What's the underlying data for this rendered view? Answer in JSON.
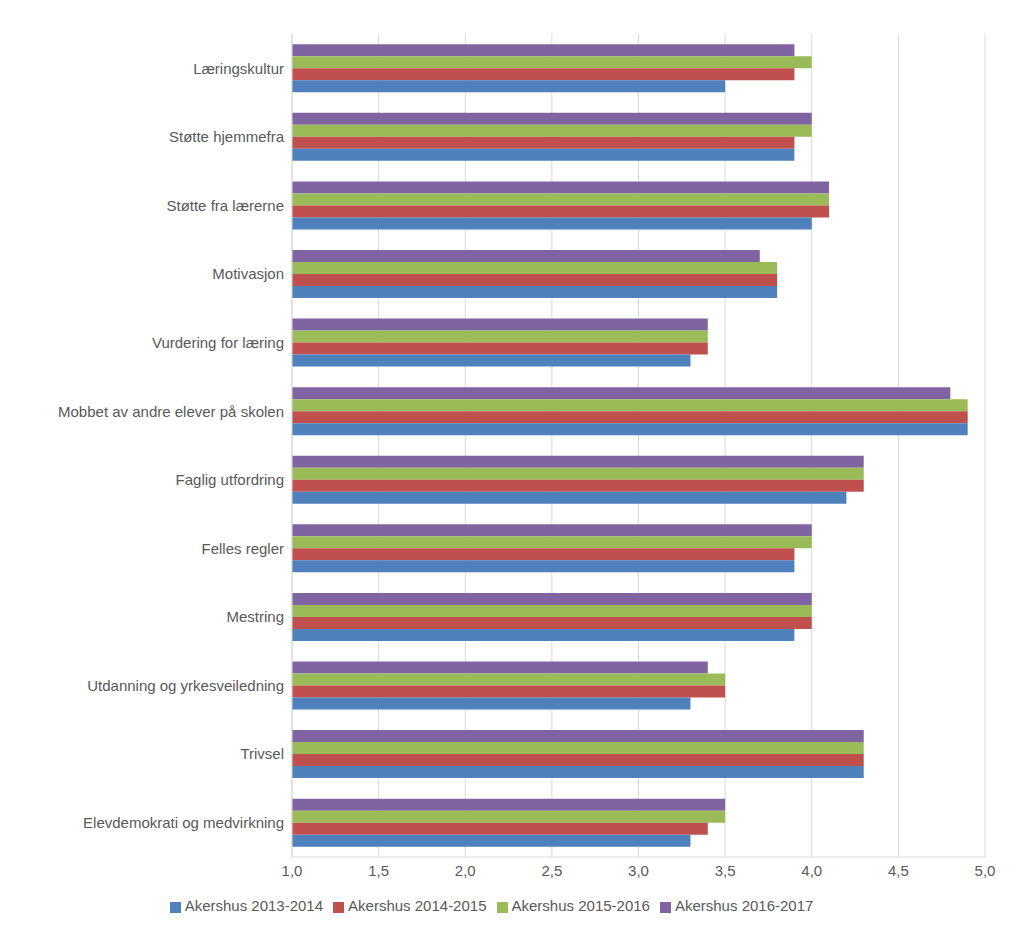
{
  "chart_data": {
    "type": "bar",
    "orientation": "horizontal",
    "grid": true,
    "legend": "bottom",
    "categories": [
      "Læringskultur",
      "Støtte hjemmefra",
      "Støtte fra lærerne",
      "Motivasjon",
      "Vurdering for læring",
      "Mobbet av andre elever på skolen",
      "Faglig utfordring",
      "Felles regler",
      "Mestring",
      "Utdanning og yrkesveiledning",
      "Trivsel",
      "Elevdemokrati og medvirkning"
    ],
    "series": [
      {
        "name": "Akershus 2016-2017",
        "color": "#8064a2",
        "values": [
          3.9,
          4.0,
          4.1,
          3.7,
          3.4,
          4.8,
          4.3,
          4.0,
          4.0,
          3.4,
          4.3,
          3.5
        ]
      },
      {
        "name": "Akershus 2015-2016",
        "color": "#9bbb59",
        "values": [
          4.0,
          4.0,
          4.1,
          3.8,
          3.4,
          4.9,
          4.3,
          4.0,
          4.0,
          3.5,
          4.3,
          3.5
        ]
      },
      {
        "name": "Akershus 2014-2015",
        "color": "#c0504d",
        "values": [
          3.9,
          3.9,
          4.1,
          3.8,
          3.4,
          4.9,
          4.3,
          3.9,
          4.0,
          3.5,
          4.3,
          3.4
        ]
      },
      {
        "name": "Akershus 2013-2014",
        "color": "#4f81bd",
        "values": [
          3.5,
          3.9,
          4.0,
          3.8,
          3.3,
          4.9,
          4.2,
          3.9,
          3.9,
          3.3,
          4.3,
          3.3
        ]
      }
    ],
    "xlim": [
      1,
      5
    ],
    "xticks": [
      {
        "value": 1,
        "label": "1,0"
      },
      {
        "value": 1.5,
        "label": "1,5"
      },
      {
        "value": 2,
        "label": "2,0"
      },
      {
        "value": 2.5,
        "label": "2,5"
      },
      {
        "value": 3,
        "label": "3,0"
      },
      {
        "value": 3.5,
        "label": "3,5"
      },
      {
        "value": 4,
        "label": "4,0"
      },
      {
        "value": 4.5,
        "label": "4,5"
      },
      {
        "value": 5,
        "label": "5,0"
      }
    ]
  }
}
